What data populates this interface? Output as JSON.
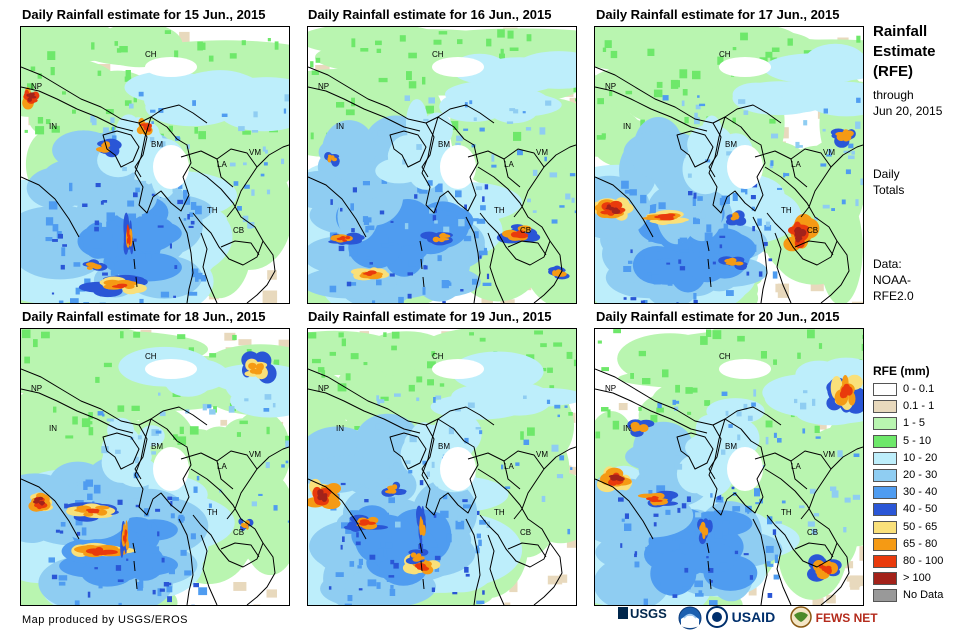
{
  "panels": [
    {
      "title": "Daily Rainfall estimate for 15 Jun., 2015"
    },
    {
      "title": "Daily Rainfall estimate for 16 Jun., 2015"
    },
    {
      "title": "Daily Rainfall estimate for 17 Jun., 2015"
    },
    {
      "title": "Daily Rainfall estimate for 18 Jun., 2015"
    },
    {
      "title": "Daily Rainfall estimate for 19 Jun., 2015"
    },
    {
      "title": "Daily Rainfall estimate for 20 Jun., 2015"
    }
  ],
  "region_labels": [
    "CH",
    "NP",
    "IN",
    "BM",
    "LA",
    "VM",
    "TH",
    "CB"
  ],
  "side": {
    "title_lines": [
      "Rainfall",
      "Estimate",
      "(RFE)"
    ],
    "through_lines": [
      "through",
      "Jun 20, 2015"
    ],
    "daily_lines": [
      "Daily",
      "Totals"
    ],
    "data_lines": [
      "Data:",
      "NOAA-",
      "RFE2.0"
    ]
  },
  "legend": {
    "title": "RFE (mm)",
    "items": [
      {
        "label": "0 - 0.1",
        "color": "#ffffff"
      },
      {
        "label": "0.1 - 1",
        "color": "#e8d9bd"
      },
      {
        "label": "1 - 5",
        "color": "#b9f5b0"
      },
      {
        "label": "5 - 10",
        "color": "#6ee86a"
      },
      {
        "label": "10 - 20",
        "color": "#bdeefb"
      },
      {
        "label": "20 - 30",
        "color": "#8fcdf2"
      },
      {
        "label": "30 - 40",
        "color": "#4f9cf0"
      },
      {
        "label": "40 - 50",
        "color": "#2a56d6"
      },
      {
        "label": "50 - 65",
        "color": "#f9e07a"
      },
      {
        "label": "65 - 80",
        "color": "#f59a14"
      },
      {
        "label": "80 - 100",
        "color": "#e93a0c"
      },
      {
        "label": "> 100",
        "color": "#a3221a"
      },
      {
        "label": "No Data",
        "color": "#999999"
      }
    ]
  },
  "footer": {
    "credit": "Map produced by USGS/EROS",
    "logos": [
      "USGS",
      "NOAA",
      "USAID",
      "FEWS NET"
    ]
  }
}
